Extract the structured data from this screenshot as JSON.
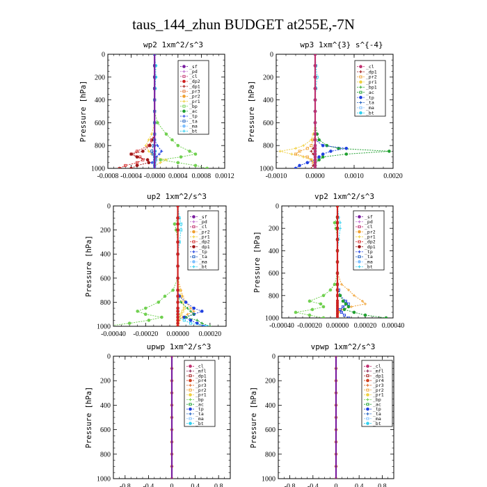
{
  "page_title": "taus_144_zhun  BUDGET at255E,-7N",
  "colors": {
    "sf": "#7a1fa0",
    "pd": "#c06fd0",
    "cl": "#c03070",
    "dp2": "#d02020",
    "dp1": "#a01818",
    "pr4": "#d04020",
    "pr3": "#e07030",
    "pr2": "#f0a030",
    "pr1": "#f0d040",
    "bp": "#70d050",
    "bp1": "#40b040",
    "ac": "#20a030",
    "tp": "#2040e0",
    "ta": "#2060c0",
    "ma": "#80c0ff",
    "bt": "#30d0f0",
    "mfl": "#8a2050"
  },
  "chart_data": [
    {
      "type": "line",
      "title": "wp2   1xm^2/s^3",
      "ylabel": "Pressure [hPa]",
      "ylim": [
        1000,
        0
      ],
      "xlim": [
        -0.0008,
        0.0012
      ],
      "xticks": [
        "-0.0008",
        "-0.0004",
        "-0.0000",
        "0.0004",
        "0.0008",
        "0.0012"
      ],
      "yticks": [
        "0",
        "200",
        "400",
        "600",
        "800",
        "1000"
      ],
      "legend": [
        "_sf",
        "_pd",
        "_cl",
        "_dp2",
        "_dp1",
        "_pr3",
        "_pr2",
        "_pr1",
        "_bp",
        "_ac",
        "_tp",
        "_ta",
        "_ma",
        "_bt"
      ],
      "p": [
        0,
        100,
        200,
        300,
        400,
        500,
        600,
        700,
        750,
        800,
        850,
        875,
        900,
        925,
        950,
        975,
        1000
      ],
      "series": [
        {
          "name": "_bp",
          "key": "bp",
          "values": [
            0,
            0,
            0,
            0,
            0,
            0,
            5e-05,
            0.0002,
            0.0003,
            0.0004,
            0.0006,
            0.0007,
            0.00045,
            0.0001,
            0.0004,
            0.0007,
            0.0009
          ]
        },
        {
          "name": "_pr1",
          "key": "pr1",
          "values": [
            0,
            0,
            0,
            0,
            0,
            0,
            0,
            -5e-05,
            -0.0001,
            -0.00015,
            -0.0001,
            -5e-05,
            0,
            0.0002,
            0.0001,
            0,
            0
          ]
        },
        {
          "name": "_dp2",
          "key": "dp2",
          "values": [
            0,
            0,
            0,
            0,
            0,
            0,
            0,
            0,
            -5e-05,
            -0.0001,
            -0.0003,
            -0.0004,
            -0.00025,
            -0.0002,
            -0.0003,
            -0.0005,
            -0.0006
          ]
        },
        {
          "name": "_dp1",
          "key": "dp1",
          "values": [
            0,
            0,
            0,
            0,
            0,
            0,
            0,
            0,
            -3e-05,
            -8e-05,
            -0.0002,
            -0.0004,
            -0.0003,
            -0.00012,
            -0.0001,
            -0.0003,
            -0.0004
          ]
        },
        {
          "name": "_tp",
          "key": "tp",
          "values": [
            0,
            0,
            0,
            0,
            0,
            0,
            0,
            0,
            0,
            5e-05,
            0.00012,
            8e-05,
            3e-05,
            0,
            -5e-05,
            0,
            0
          ]
        },
        {
          "name": "_ta",
          "key": "ta",
          "values": [
            0,
            0,
            0,
            0,
            0,
            0,
            0,
            0,
            0,
            -2e-05,
            -5e-05,
            -3e-05,
            0,
            2e-05,
            0,
            0,
            0
          ]
        },
        {
          "name": "_bt",
          "key": "bt",
          "values": [
            0,
            2e-05,
            2e-05,
            1e-05,
            0,
            0,
            0,
            0,
            0,
            0,
            1e-05,
            0,
            0,
            0,
            0,
            0,
            0
          ]
        },
        {
          "name": "_sf",
          "key": "sf",
          "values": [
            0,
            0,
            0,
            0,
            0,
            0,
            0,
            0,
            0,
            0,
            0,
            0,
            0,
            0,
            0,
            0,
            0
          ]
        }
      ]
    },
    {
      "type": "line",
      "title": "wp3   1xm^{3} s^{-4}",
      "ylabel": "Pressure [hPa]",
      "ylim": [
        1000,
        0
      ],
      "xlim": [
        -0.001,
        0.002
      ],
      "xticks": [
        "-0.0010",
        "0.0000",
        "0.0010",
        "0.0020"
      ],
      "yticks": [
        "0",
        "200",
        "400",
        "600",
        "800",
        "1000"
      ],
      "legend": [
        "_cl",
        "_dp1",
        "_pr2",
        "_pr1",
        "_bp1",
        "_ac",
        "_tp",
        "_ta",
        "_ma",
        "_bt"
      ],
      "p": [
        0,
        100,
        200,
        300,
        400,
        500,
        600,
        700,
        750,
        800,
        825,
        850,
        875,
        900,
        925,
        950,
        975,
        1000
      ],
      "series": [
        {
          "name": "_ac",
          "key": "ac",
          "values": [
            0,
            0,
            0,
            0,
            0,
            0,
            0,
            5e-05,
            0.0001,
            0.0003,
            0.0006,
            0.0019,
            0.0008,
            0.0002,
            0.0001,
            0,
            0,
            0
          ]
        },
        {
          "name": "_pr1",
          "key": "pr1",
          "values": [
            0,
            0,
            0,
            0,
            0,
            0,
            0,
            -5e-05,
            -0.0001,
            -0.0003,
            -0.0005,
            -0.0009,
            -0.0006,
            -0.0003,
            -0.0001,
            0,
            0,
            0
          ]
        },
        {
          "name": "_pr2",
          "key": "pr2",
          "values": [
            0,
            0,
            0,
            0,
            0,
            0,
            0,
            0,
            -5e-05,
            -0.0001,
            -0.0002,
            -0.0004,
            -0.0005,
            -0.0002,
            -0.0001,
            -5e-05,
            0,
            0
          ]
        },
        {
          "name": "_tp",
          "key": "tp",
          "values": [
            0,
            0,
            0,
            0,
            0,
            0,
            0,
            0,
            0,
            0.0002,
            0.0008,
            0.0004,
            0.0002,
            0.0001,
            0,
            -0.0002,
            -0.0004,
            -0.0005
          ]
        },
        {
          "name": "_dp1",
          "key": "dp1",
          "values": [
            0,
            0,
            0,
            0,
            0,
            0,
            0,
            0,
            0,
            0,
            -5e-05,
            -0.0001,
            -5e-05,
            0,
            0,
            0,
            -5e-05,
            -0.0001
          ]
        },
        {
          "name": "_bt",
          "key": "bt",
          "values": [
            0,
            2e-05,
            5e-05,
            2e-05,
            0,
            0,
            0,
            0,
            0,
            0,
            0,
            0,
            0,
            0,
            0,
            0,
            0,
            0
          ]
        },
        {
          "name": "_cl",
          "key": "cl",
          "values": [
            0,
            0,
            0,
            0,
            0,
            0,
            0,
            0,
            0,
            0,
            0,
            0,
            0,
            0,
            0,
            0,
            0,
            0
          ]
        }
      ]
    },
    {
      "type": "line",
      "title": "up2   1xm^2/s^3",
      "ylabel": "Pressure [hPa]",
      "ylim": [
        1000,
        0
      ],
      "xlim": [
        -0.0004,
        0.0003
      ],
      "xticks": [
        "-0.00040",
        "-0.00020",
        "0.00000",
        "0.00020"
      ],
      "yticks": [
        "0",
        "200",
        "400",
        "600",
        "800",
        "1000"
      ],
      "legend": [
        "_sf",
        "_pd",
        "_cl",
        "_pr2",
        "_pr1",
        "_dp2",
        "_dp1",
        "_tp",
        "_ta",
        "_ma",
        "_bt"
      ],
      "p": [
        0,
        100,
        150,
        200,
        300,
        400,
        500,
        600,
        700,
        750,
        800,
        850,
        875,
        900,
        925,
        950,
        975,
        1000
      ],
      "series": [
        {
          "name": "_dp2",
          "key": "bp",
          "values": [
            0,
            0,
            -2e-05,
            -1e-05,
            0,
            0,
            0,
            0,
            -3e-05,
            -8e-05,
            -0.00012,
            -0.0002,
            -0.00025,
            -0.0002,
            -0.0001,
            -0.00018,
            -0.0003,
            -0.00045
          ]
        },
        {
          "name": "_pr2",
          "key": "pr2",
          "values": [
            0,
            0,
            0,
            0,
            0,
            0,
            0,
            0,
            2e-05,
            3e-05,
            5e-05,
            8e-05,
            0.0001,
            6e-05,
            3e-05,
            1e-05,
            0,
            0
          ]
        },
        {
          "name": "_pr1",
          "key": "pr1",
          "values": [
            0,
            0,
            0,
            0,
            0,
            0,
            0,
            0,
            1e-05,
            2e-05,
            3e-05,
            4e-05,
            3e-05,
            2e-05,
            1e-05,
            0,
            0,
            0
          ]
        },
        {
          "name": "_tp",
          "key": "tp",
          "values": [
            0,
            0,
            0,
            0,
            0,
            0,
            0,
            0,
            0,
            1e-05,
            5e-05,
            0.0001,
            0.00015,
            0.0001,
            4e-05,
            8e-05,
            0.00012,
            0.00016
          ]
        },
        {
          "name": "_ta",
          "key": "ac",
          "values": [
            0,
            0,
            0,
            0,
            0,
            0,
            0,
            0,
            0,
            0,
            2e-05,
            6e-05,
            8e-05,
            0.0001,
            5e-05,
            0.00012,
            0.00015,
            0.0002
          ]
        },
        {
          "name": "_bt",
          "key": "bt",
          "values": [
            0,
            1e-05,
            2e-05,
            2e-05,
            1e-05,
            0,
            0,
            0,
            0,
            0,
            0,
            0,
            0,
            0,
            0,
            4e-05,
            8e-05,
            0.00018
          ]
        },
        {
          "name": "_sf",
          "key": "dp2",
          "values": [
            0,
            0,
            0,
            0,
            0,
            0,
            0,
            0,
            0,
            0,
            0,
            0,
            0,
            0,
            0,
            0,
            0,
            0
          ]
        }
      ]
    },
    {
      "type": "line",
      "title": "vp2   1xm^2/s^3",
      "ylabel": "Pressure [hPa]",
      "ylim": [
        1000,
        0
      ],
      "xlim": [
        -0.0004,
        0.0004
      ],
      "xticks": [
        "-0.00040",
        "-0.00020",
        "0.00000",
        "0.00020",
        "0.00040"
      ],
      "yticks": [
        "0",
        "200",
        "400",
        "600",
        "800",
        "1000"
      ],
      "legend": [
        "_sf",
        "_pd",
        "_cl",
        "_pr2",
        "_pr1",
        "_dp2",
        "_dp1",
        "_tp",
        "_ta",
        "_ma",
        "_bt"
      ],
      "p": [
        0,
        100,
        150,
        200,
        300,
        400,
        500,
        600,
        700,
        750,
        800,
        850,
        875,
        900,
        925,
        950,
        975,
        1000
      ],
      "series": [
        {
          "name": "_dp2",
          "key": "bp",
          "values": [
            0,
            0,
            -2e-05,
            -1e-05,
            0,
            0,
            0,
            0,
            -2e-05,
            -5e-05,
            -0.0001,
            -0.0002,
            -0.00012,
            -0.0001,
            -0.00018,
            -0.0003,
            -0.0002,
            -0.0001
          ]
        },
        {
          "name": "_pr2",
          "key": "pr2",
          "values": [
            0,
            0,
            0,
            0,
            0,
            0,
            0,
            0,
            3e-05,
            8e-05,
            0.00012,
            0.00018,
            0.0002,
            0.0001,
            3e-05,
            1e-05,
            0,
            0
          ]
        },
        {
          "name": "_tp",
          "key": "tp",
          "values": [
            0,
            0,
            0,
            0,
            0,
            0,
            0,
            0,
            0,
            1e-05,
            2e-05,
            6e-05,
            8e-05,
            4e-05,
            2e-05,
            3e-05,
            5e-05,
            8e-05
          ]
        },
        {
          "name": "_dp1",
          "key": "ac",
          "values": [
            0,
            0,
            0,
            0,
            0,
            0,
            0,
            0,
            0,
            0,
            2e-05,
            4e-05,
            6e-05,
            8e-05,
            5e-05,
            0.00012,
            0.0002,
            0.00035
          ]
        },
        {
          "name": "_bt",
          "key": "bt",
          "values": [
            0,
            1e-05,
            2e-05,
            2e-05,
            1e-05,
            0,
            0,
            0,
            0,
            0,
            0,
            0,
            0,
            0,
            0,
            0,
            0,
            0
          ]
        },
        {
          "name": "_sf",
          "key": "dp2",
          "values": [
            0,
            0,
            0,
            0,
            0,
            0,
            0,
            0,
            0,
            0,
            0,
            0,
            0,
            0,
            0,
            0,
            0,
            0
          ]
        }
      ]
    },
    {
      "type": "line",
      "title": "upwp   1xm^2/s^3",
      "ylabel": "Pressure [hPa]",
      "ylim": [
        1000,
        0
      ],
      "xlim": [
        -1.0,
        1.0
      ],
      "xticks": [
        "-0.8",
        "-0.4",
        "0",
        "0.4",
        "0.8"
      ],
      "yticks": [
        "0",
        "200",
        "400",
        "600",
        "800",
        "1000"
      ],
      "legend": [
        "_cl",
        "_mfl",
        "_dp1",
        "_pr4",
        "_pr3",
        "_pr2",
        "_pr1",
        "_bp",
        "_ac",
        "_tp",
        "_ta",
        "_ma",
        "_bt"
      ],
      "p": [
        0,
        100,
        200,
        300,
        400,
        500,
        600,
        700,
        800,
        900,
        1000
      ],
      "series": [
        {
          "name": "_pr1",
          "key": "pr2",
          "values": [
            0,
            0,
            0,
            0,
            0,
            0,
            0,
            0,
            0,
            0,
            0
          ]
        },
        {
          "name": "_cl",
          "key": "sf",
          "values": [
            0,
            0,
            0,
            0,
            0,
            0,
            0,
            0,
            0,
            0,
            0
          ]
        }
      ]
    },
    {
      "type": "line",
      "title": "vpwp   1xm^2/s^3",
      "ylabel": "Pressure [hPa]",
      "ylim": [
        1000,
        0
      ],
      "xlim": [
        -1.0,
        1.0
      ],
      "xticks": [
        "-0.8",
        "-0.4",
        "0",
        "0.4",
        "0.8"
      ],
      "yticks": [
        "0",
        "200",
        "400",
        "600",
        "800",
        "1000"
      ],
      "legend": [
        "_cl",
        "_mfl",
        "_dp1",
        "_pr4",
        "_pr3",
        "_pr2",
        "_pr1",
        "_bp",
        "_ac",
        "_tp",
        "_ta",
        "_ma",
        "_bt"
      ],
      "p": [
        0,
        100,
        200,
        300,
        400,
        500,
        600,
        700,
        800,
        900,
        1000
      ],
      "series": [
        {
          "name": "_pr1",
          "key": "pr2",
          "values": [
            0,
            0,
            0,
            0,
            0,
            0,
            0,
            0,
            0,
            0,
            0
          ]
        },
        {
          "name": "_cl",
          "key": "sf",
          "values": [
            0,
            0,
            0,
            0,
            0,
            0,
            0,
            0,
            0,
            0,
            0
          ]
        }
      ]
    }
  ]
}
